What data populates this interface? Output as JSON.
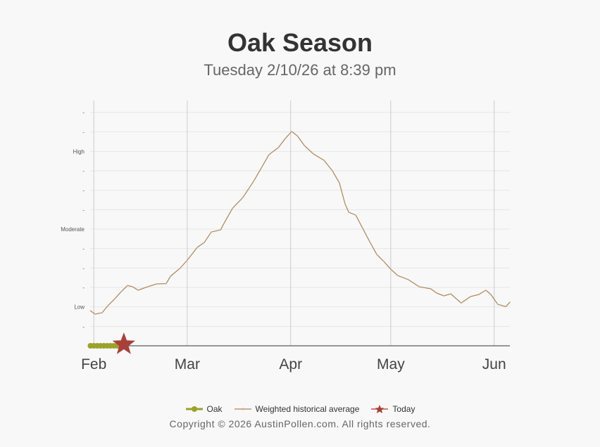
{
  "title": "Oak Season",
  "subtitle": "Tuesday 2/10/26 at 8:39 pm",
  "legend": {
    "oak": "Oak",
    "average": "Weighted historical average",
    "today": "Today"
  },
  "copyright": "Copyright © 2026 AustinPollen.com.  All rights reserved.",
  "colors": {
    "oak": "#9aa22a",
    "average": "#b08b64",
    "today": "#a8403a",
    "grid": "#e6e6e6",
    "vgrid": "#cccccc"
  },
  "chart_data": {
    "type": "line",
    "title": "Oak Season",
    "x_unit": "days since Feb 1",
    "xlim": [
      -1.1,
      124.7
    ],
    "ylim": [
      0,
      12
    ],
    "x_ticks": [
      {
        "day": 0,
        "label": "Feb"
      },
      {
        "day": 28,
        "label": "Mar"
      },
      {
        "day": 59,
        "label": "Apr"
      },
      {
        "day": 89,
        "label": "May"
      },
      {
        "day": 120,
        "label": "Jun"
      }
    ],
    "y_ticks": [
      {
        "v": 1,
        "label": "-"
      },
      {
        "v": 2,
        "label": "Low"
      },
      {
        "v": 3,
        "label": "-"
      },
      {
        "v": 4,
        "label": "-"
      },
      {
        "v": 5,
        "label": "-"
      },
      {
        "v": 6,
        "label": "Moderate"
      },
      {
        "v": 7,
        "label": "-"
      },
      {
        "v": 8,
        "label": "-"
      },
      {
        "v": 9,
        "label": "-"
      },
      {
        "v": 10,
        "label": "High"
      },
      {
        "v": 11,
        "label": "-"
      },
      {
        "v": 12,
        "label": "-"
      }
    ],
    "series": [
      {
        "name": "Weighted historical average",
        "points": [
          [
            -1,
            1.8
          ],
          [
            0.4,
            1.63
          ],
          [
            2.5,
            1.7
          ],
          [
            4.2,
            2.06
          ],
          [
            6.3,
            2.42
          ],
          [
            8.2,
            2.78
          ],
          [
            10.1,
            3.1
          ],
          [
            11.6,
            3.04
          ],
          [
            13.3,
            2.86
          ],
          [
            16.2,
            3.04
          ],
          [
            18.8,
            3.18
          ],
          [
            21.7,
            3.2
          ],
          [
            23,
            3.58
          ],
          [
            25.8,
            3.98
          ],
          [
            28,
            4.4
          ],
          [
            31,
            5.06
          ],
          [
            33.1,
            5.31
          ],
          [
            35.2,
            5.85
          ],
          [
            38,
            5.96
          ],
          [
            39,
            6.29
          ],
          [
            41.6,
            7.08
          ],
          [
            44.7,
            7.63
          ],
          [
            47.9,
            8.46
          ],
          [
            50.4,
            9.2
          ],
          [
            52.5,
            9.83
          ],
          [
            55.3,
            10.19
          ],
          [
            57.4,
            10.66
          ],
          [
            59.3,
            11.02
          ],
          [
            61,
            10.8
          ],
          [
            63.1,
            10.3
          ],
          [
            65.8,
            9.87
          ],
          [
            69,
            9.54
          ],
          [
            71.5,
            9.0
          ],
          [
            73.6,
            8.38
          ],
          [
            75.3,
            7.3
          ],
          [
            76.4,
            6.87
          ],
          [
            78.5,
            6.72
          ],
          [
            80.6,
            6.04
          ],
          [
            82.7,
            5.35
          ],
          [
            84.8,
            4.7
          ],
          [
            86.9,
            4.34
          ],
          [
            89,
            3.94
          ],
          [
            91.1,
            3.61
          ],
          [
            94.3,
            3.4
          ],
          [
            97.5,
            3.04
          ],
          [
            101,
            2.93
          ],
          [
            102.8,
            2.71
          ],
          [
            104.9,
            2.57
          ],
          [
            107,
            2.67
          ],
          [
            110.1,
            2.2
          ],
          [
            112.9,
            2.53
          ],
          [
            115.4,
            2.64
          ],
          [
            117.5,
            2.86
          ],
          [
            119,
            2.64
          ],
          [
            121.1,
            2.13
          ],
          [
            123.5,
            2.02
          ],
          [
            124.7,
            2.24
          ]
        ]
      },
      {
        "name": "Oak",
        "points": [
          [
            -1,
            0
          ],
          [
            0,
            0
          ],
          [
            1,
            0
          ],
          [
            2,
            0
          ],
          [
            3,
            0
          ],
          [
            4,
            0
          ],
          [
            5,
            0
          ],
          [
            6,
            0
          ],
          [
            7,
            0
          ]
        ]
      },
      {
        "name": "Today",
        "points": [
          [
            9,
            0
          ]
        ]
      }
    ]
  }
}
